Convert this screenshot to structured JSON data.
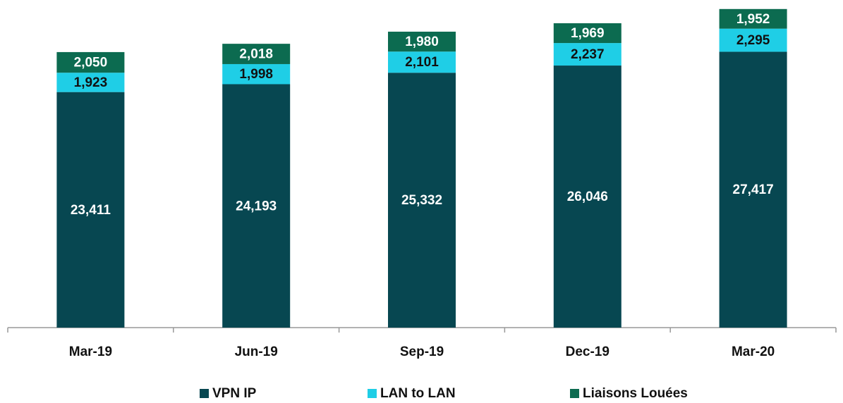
{
  "chart_data": {
    "type": "stacked_bar",
    "categories": [
      "Mar-19",
      "Jun-19",
      "Sep-19",
      "Dec-19",
      "Mar-20"
    ],
    "series": [
      {
        "name": "VPN IP",
        "color": "#074751",
        "label_color": "#ffffff",
        "values": [
          23411,
          24193,
          25332,
          26046,
          27417
        ],
        "value_labels": [
          "23,411",
          "24,193",
          "25,332",
          "26,046",
          "27,417"
        ]
      },
      {
        "name": "LAN to LAN",
        "color": "#1fcee6",
        "label_color": "#111111",
        "values": [
          1923,
          1998,
          2101,
          2237,
          2295
        ],
        "value_labels": [
          "1,923",
          "1,998",
          "2,101",
          "2,237",
          "2,295"
        ]
      },
      {
        "name": "Liaisons Louées",
        "color": "#0c6b50",
        "label_color": "#ffffff",
        "values": [
          2050,
          2018,
          1980,
          1969,
          1952
        ],
        "value_labels": [
          "2,050",
          "2,018",
          "1,980",
          "1,969",
          "1,952"
        ]
      }
    ],
    "ylim": [
      0,
      32000
    ],
    "legend": "bottom"
  }
}
